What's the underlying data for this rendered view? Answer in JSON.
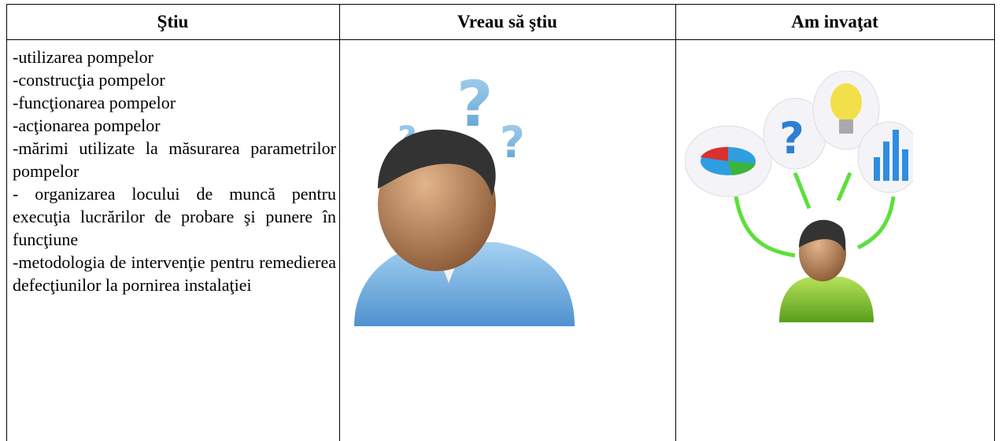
{
  "table": {
    "headers": [
      "Ştiu",
      "Vreau să ştiu",
      "Am invaţat"
    ],
    "known": [
      "-utilizarea pompelor",
      "-construcţia pompelor",
      "-funcţionarea pompelor",
      "-acţionarea pompelor",
      "-mărimi utilizate la măsurarea parametrilor pompelor",
      "- organizarea locului de muncă pentru execuţia lucrărilor de probare şi punere în funcţiune",
      "-metodologia de intervenţie pentru remedierea defecţiunilor la pornirea instalaţiei"
    ]
  }
}
